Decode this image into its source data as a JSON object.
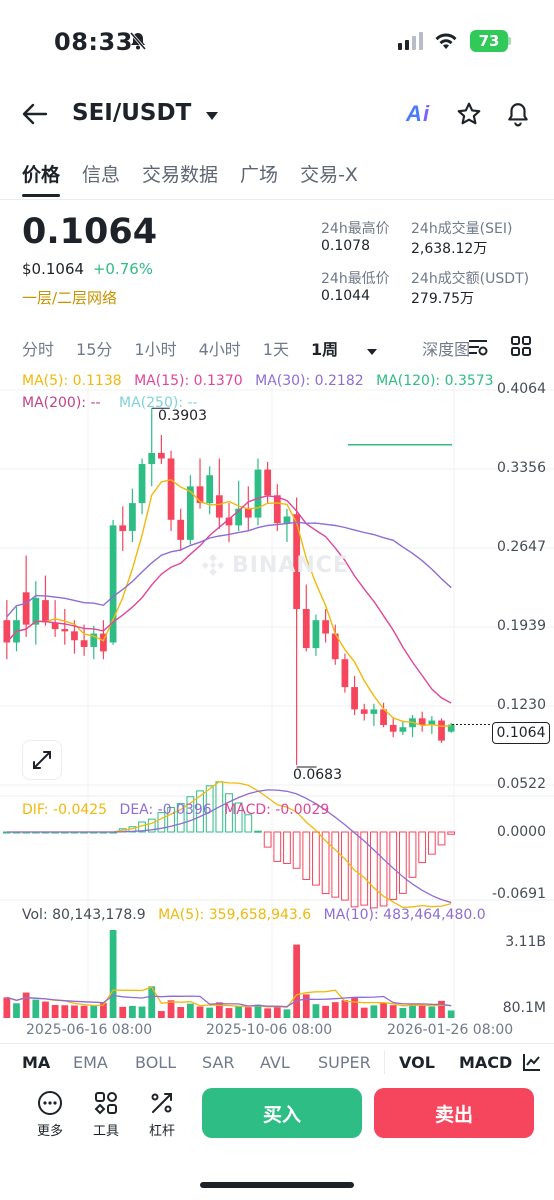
{
  "status_bar": {
    "time": "08:33",
    "battery": "73"
  },
  "header": {
    "pair": "SEI/USDT"
  },
  "tabs": [
    {
      "label": "价格",
      "active": true
    },
    {
      "label": "信息",
      "active": false
    },
    {
      "label": "交易数据",
      "active": false
    },
    {
      "label": "广场",
      "active": false
    },
    {
      "label": "交易-X",
      "active": false
    }
  ],
  "ticker": {
    "last_price": "0.1064",
    "usd_price": "$0.1064",
    "change": "+0.76%",
    "layer_tag": "一层/二层网络",
    "high_label": "24h最高价",
    "high_value": "0.1078",
    "low_label": "24h最低价",
    "low_value": "0.1044",
    "vol_sei_label": "24h成交量(SEI)",
    "vol_sei_value": "2,638.12万",
    "vol_usdt_label": "24h成交额(USDT)",
    "vol_usdt_value": "279.75万"
  },
  "intervals": [
    {
      "label": "分时"
    },
    {
      "label": "15分"
    },
    {
      "label": "1小时"
    },
    {
      "label": "4小时"
    },
    {
      "label": "1天"
    },
    {
      "label": "1周",
      "active": true
    },
    {
      "label": "深度图"
    }
  ],
  "ma_legend": {
    "ma5": "MA(5): 0.1138",
    "ma15": "MA(15): 0.1370",
    "ma30": "MA(30): 0.2182",
    "ma120": "MA(120): 0.3573",
    "ma200": "MA(200): --",
    "ma250": "MA(250): --"
  },
  "price_axis": [
    "0.4064",
    "0.3356",
    "0.2647",
    "0.1939",
    "0.1230",
    "0.0522"
  ],
  "current_price_tag": "0.1064",
  "high_marker": "0.3903",
  "low_marker": "0.0683",
  "watermark": "BINANCE",
  "macd_legend": {
    "dif": "DIF: -0.0425",
    "dea": "DEA: -0.0396",
    "macd": "MACD: -0.0029"
  },
  "macd_axis": [
    "0.0000",
    "-0.0691"
  ],
  "vol_legend": {
    "vol": "Vol: 80,143,178.9",
    "ma5": "MA(5): 359,658,943.6",
    "ma10": "MA(10): 483,464,480.0"
  },
  "vol_axis": [
    "3.11B",
    "80.1M"
  ],
  "x_axis": [
    "2025-06-16 08:00",
    "2025-10-06 08:00",
    "2026-01-26 08:00"
  ],
  "indicator_tabs": [
    {
      "label": "MA",
      "active": true
    },
    {
      "label": "EMA"
    },
    {
      "label": "BOLL"
    },
    {
      "label": "SAR"
    },
    {
      "label": "AVL"
    },
    {
      "label": "SUPER"
    },
    {
      "label": "VOL",
      "active": true
    },
    {
      "label": "MACD",
      "active": true
    }
  ],
  "bottom_tools": [
    {
      "label": "更多",
      "icon": "more-icon"
    },
    {
      "label": "工具",
      "icon": "tools-icon"
    },
    {
      "label": "杠杆",
      "icon": "leverage-icon"
    }
  ],
  "buy_label": "买入",
  "sell_label": "卖出",
  "colors": {
    "up": "#2ebd85",
    "down": "#f6465d",
    "ma5": "#f0b90b",
    "ma15": "#e0459b",
    "ma30": "#8f6cd6",
    "ma120": "#2ebd85"
  },
  "chart_data": {
    "type": "candlestick",
    "interval": "1周",
    "price_axis_range": [
      0.0522,
      0.4064
    ],
    "candles": [
      [
        0.2,
        0.218,
        0.165,
        0.18
      ],
      [
        0.18,
        0.212,
        0.172,
        0.2
      ],
      [
        0.225,
        0.258,
        0.185,
        0.196
      ],
      [
        0.196,
        0.235,
        0.178,
        0.22
      ],
      [
        0.218,
        0.24,
        0.195,
        0.198
      ],
      [
        0.198,
        0.218,
        0.185,
        0.192
      ],
      [
        0.192,
        0.21,
        0.178,
        0.19
      ],
      [
        0.19,
        0.2,
        0.17,
        0.182
      ],
      [
        0.182,
        0.196,
        0.168,
        0.176
      ],
      [
        0.176,
        0.195,
        0.165,
        0.188
      ],
      [
        0.188,
        0.2,
        0.165,
        0.172
      ],
      [
        0.18,
        0.29,
        0.178,
        0.285
      ],
      [
        0.285,
        0.302,
        0.262,
        0.28
      ],
      [
        0.28,
        0.318,
        0.27,
        0.305
      ],
      [
        0.305,
        0.345,
        0.295,
        0.34
      ],
      [
        0.34,
        0.39,
        0.32,
        0.35
      ],
      [
        0.35,
        0.366,
        0.34,
        0.345
      ],
      [
        0.345,
        0.352,
        0.28,
        0.29
      ],
      [
        0.29,
        0.3,
        0.262,
        0.272
      ],
      [
        0.272,
        0.33,
        0.268,
        0.32
      ],
      [
        0.32,
        0.345,
        0.3,
        0.305
      ],
      [
        0.305,
        0.338,
        0.295,
        0.33
      ],
      [
        0.312,
        0.345,
        0.282,
        0.292
      ],
      [
        0.292,
        0.305,
        0.27,
        0.285
      ],
      [
        0.285,
        0.325,
        0.28,
        0.3
      ],
      [
        0.3,
        0.32,
        0.28,
        0.292
      ],
      [
        0.292,
        0.345,
        0.285,
        0.335
      ],
      [
        0.335,
        0.342,
        0.305,
        0.312
      ],
      [
        0.312,
        0.322,
        0.28,
        0.287
      ],
      [
        0.287,
        0.3,
        0.27,
        0.293
      ],
      [
        0.295,
        0.31,
        0.07,
        0.21
      ],
      [
        0.21,
        0.232,
        0.172,
        0.175
      ],
      [
        0.175,
        0.205,
        0.168,
        0.2
      ],
      [
        0.2,
        0.21,
        0.18,
        0.188
      ],
      [
        0.188,
        0.196,
        0.16,
        0.165
      ],
      [
        0.165,
        0.17,
        0.135,
        0.14
      ],
      [
        0.14,
        0.15,
        0.115,
        0.12
      ],
      [
        0.12,
        0.125,
        0.11,
        0.116
      ],
      [
        0.116,
        0.125,
        0.105,
        0.12
      ],
      [
        0.12,
        0.126,
        0.104,
        0.106
      ],
      [
        0.106,
        0.112,
        0.095,
        0.1
      ],
      [
        0.1,
        0.11,
        0.097,
        0.104
      ],
      [
        0.104,
        0.115,
        0.095,
        0.112
      ],
      [
        0.112,
        0.118,
        0.1,
        0.106
      ],
      [
        0.106,
        0.114,
        0.098,
        0.11
      ],
      [
        0.11,
        0.112,
        0.09,
        0.092
      ],
      [
        0.1,
        0.108,
        0.099,
        0.1064
      ]
    ],
    "ma120_level": 0.3573,
    "last_price": 0.1064,
    "high": 0.3903,
    "low": 0.0683,
    "macd_axis_range": [
      -0.0691,
      0.0
    ],
    "volume_axis_range": [
      0.0801,
      3.11
    ],
    "volume_unit": "B"
  }
}
